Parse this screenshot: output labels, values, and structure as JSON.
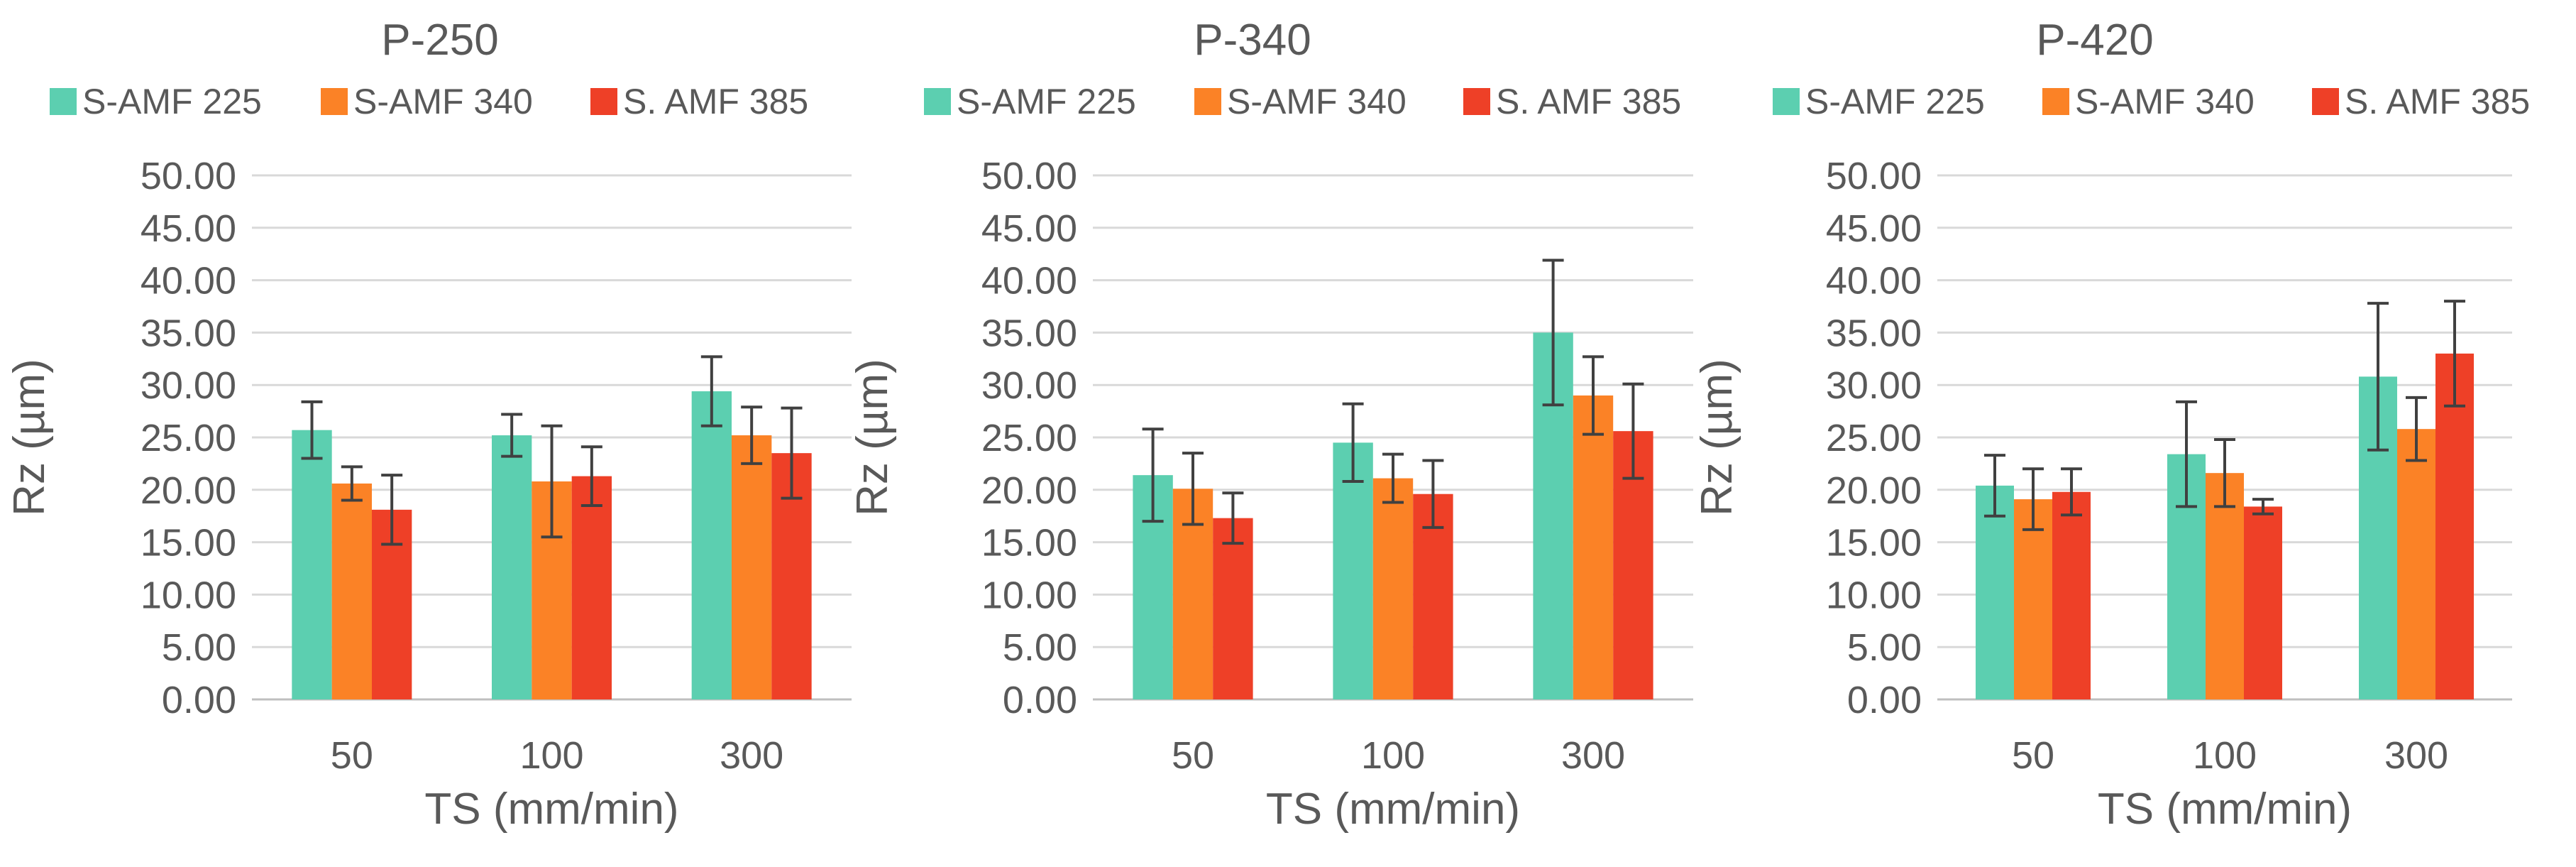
{
  "chart_data": [
    {
      "type": "bar",
      "title": "P-250",
      "xlabel": "TS (mm/min)",
      "ylabel": "Rz (µm)",
      "ylim": [
        0,
        50
      ],
      "yticks": [
        "0.00",
        "5.00",
        "10.00",
        "15.00",
        "20.00",
        "25.00",
        "30.00",
        "35.00",
        "40.00",
        "45.00",
        "50.00"
      ],
      "categories": [
        "50",
        "100",
        "300"
      ],
      "series": [
        {
          "name": "S-AMF 225",
          "values": [
            25.7,
            25.2,
            29.4
          ],
          "errors": [
            2.7,
            2.0,
            3.3
          ]
        },
        {
          "name": "S-AMF 340",
          "values": [
            20.6,
            20.8,
            25.2
          ],
          "errors": [
            1.6,
            5.3,
            2.7
          ]
        },
        {
          "name": "S. AMF 385",
          "values": [
            18.1,
            21.3,
            23.5
          ],
          "errors": [
            3.3,
            2.8,
            4.3
          ]
        }
      ],
      "grid": true,
      "legend_position": "top"
    },
    {
      "type": "bar",
      "title": "P-340",
      "xlabel": "TS (mm/min)",
      "ylabel": "Rz (µm)",
      "ylim": [
        0,
        50
      ],
      "yticks": [
        "0.00",
        "5.00",
        "10.00",
        "15.00",
        "20.00",
        "25.00",
        "30.00",
        "35.00",
        "40.00",
        "45.00",
        "50.00"
      ],
      "categories": [
        "50",
        "100",
        "300"
      ],
      "series": [
        {
          "name": "S-AMF 225",
          "values": [
            21.4,
            24.5,
            35.0
          ],
          "errors": [
            4.4,
            3.7,
            6.9
          ]
        },
        {
          "name": "S-AMF 340",
          "values": [
            20.1,
            21.1,
            29.0
          ],
          "errors": [
            3.4,
            2.3,
            3.7
          ]
        },
        {
          "name": "S. AMF 385",
          "values": [
            17.3,
            19.6,
            25.6
          ],
          "errors": [
            2.4,
            3.2,
            4.5
          ]
        }
      ],
      "grid": true,
      "legend_position": "top"
    },
    {
      "type": "bar",
      "title": "P-420",
      "xlabel": "TS (mm/min)",
      "ylabel": "Rz (µm)",
      "ylim": [
        0,
        50
      ],
      "yticks": [
        "0.00",
        "5.00",
        "10.00",
        "15.00",
        "20.00",
        "25.00",
        "30.00",
        "35.00",
        "40.00",
        "45.00",
        "50.00"
      ],
      "categories": [
        "50",
        "100",
        "300"
      ],
      "series": [
        {
          "name": "S-AMF 225",
          "values": [
            20.4,
            23.4,
            30.8
          ],
          "errors": [
            2.9,
            5.0,
            7.0
          ]
        },
        {
          "name": "S-AMF 340",
          "values": [
            19.1,
            21.6,
            25.8
          ],
          "errors": [
            2.9,
            3.2,
            3.0
          ]
        },
        {
          "name": "S. AMF 385",
          "values": [
            19.8,
            18.4,
            33.0
          ],
          "errors": [
            2.2,
            0.7,
            5.0
          ]
        }
      ],
      "grid": true,
      "legend_position": "top"
    }
  ],
  "colors": {
    "series": [
      "#5ccfb0",
      "#fb8226",
      "#ee4027"
    ],
    "grid": "#d9d9d9",
    "axis": "#bfbfbf",
    "error_bar": "#404040",
    "text": "#595959"
  }
}
